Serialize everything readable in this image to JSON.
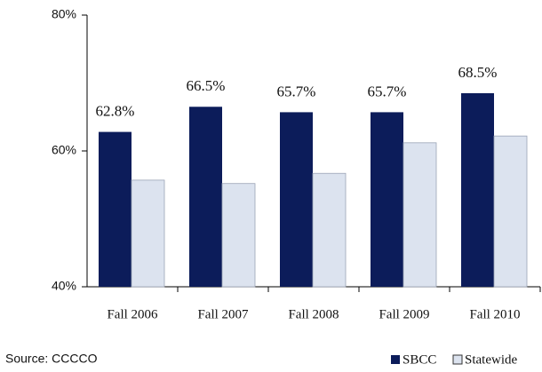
{
  "chart_data": {
    "type": "bar",
    "categories": [
      "Fall 2006",
      "Fall 2007",
      "Fall 2008",
      "Fall 2009",
      "Fall 2010"
    ],
    "series": [
      {
        "name": "SBCC",
        "color": "#0c1c5a",
        "values": [
          62.8,
          66.5,
          65.7,
          65.7,
          68.5
        ],
        "value_labels": [
          "62.8%",
          "66.5%",
          "65.7%",
          "65.7%",
          "68.5%"
        ]
      },
      {
        "name": "Statewide",
        "color": "#dce3ef",
        "values": [
          55.7,
          55.2,
          56.7,
          61.2,
          62.2
        ]
      }
    ],
    "ylim": [
      40,
      80
    ],
    "yticks": [
      {
        "value": 40,
        "label": "40%"
      },
      {
        "value": 60,
        "label": "60%"
      },
      {
        "value": 80,
        "label": "80%"
      }
    ],
    "note": "Source: CCCCO"
  }
}
